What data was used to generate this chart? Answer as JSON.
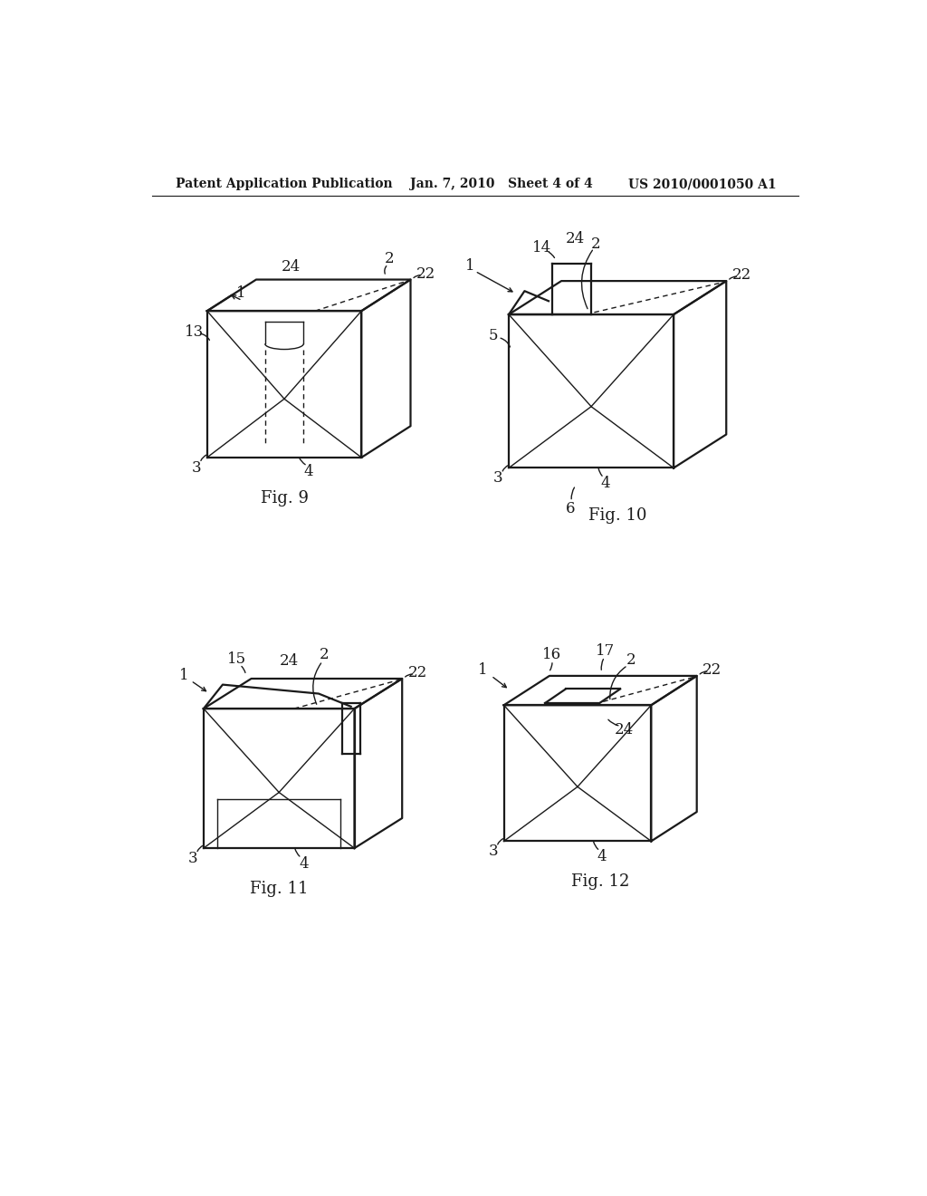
{
  "header_left": "Patent Application Publication",
  "header_mid": "Jan. 7, 2010   Sheet 4 of 4",
  "header_right": "US 2010/0001050 A1",
  "background_color": "#ffffff",
  "line_color": "#1a1a1a",
  "font_size_header": 10,
  "font_size_label": 12,
  "font_size_fig": 13
}
